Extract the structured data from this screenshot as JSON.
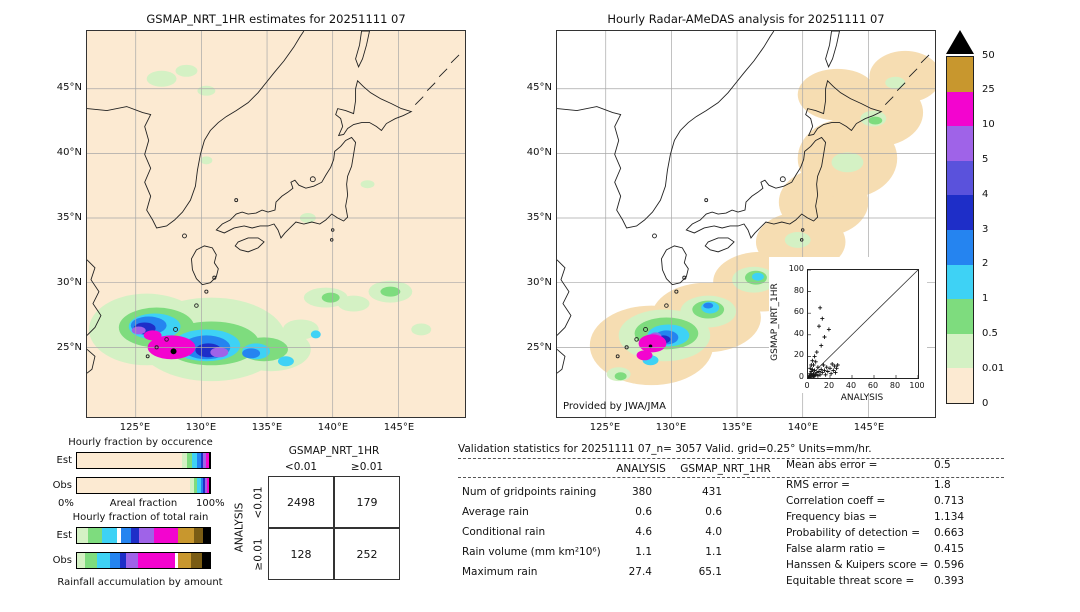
{
  "chart_data": [
    {
      "id": "gsmap_map",
      "type": "heatmap",
      "title": "GSMAP_NRT_1HR estimates for 20251111 07",
      "lat_ticks": [
        "45°N",
        "40°N",
        "35°N",
        "30°N",
        "25°N"
      ],
      "lon_ticks": [
        "125°E",
        "130°E",
        "135°E",
        "140°E",
        "145°E"
      ],
      "units": "mm/hr"
    },
    {
      "id": "radar_map",
      "type": "heatmap",
      "title": "Hourly Radar-AMeDAS analysis for 20251111 07",
      "credit": "Provided by JWA/JMA",
      "lat_ticks": [
        "45°N",
        "40°N",
        "35°N",
        "30°N",
        "25°N"
      ],
      "lon_ticks": [
        "125°E",
        "130°E",
        "135°E",
        "140°E",
        "145°E"
      ],
      "units": "mm/hr"
    },
    {
      "id": "validation_scatter",
      "type": "scatter",
      "xlabel": "ANALYSIS",
      "ylabel": "GSMAP_NRT_1HR",
      "xlim": [
        0,
        100
      ],
      "ylim": [
        0,
        100
      ],
      "tick_labels": [
        "0",
        "20",
        "40",
        "60",
        "80",
        "100"
      ],
      "marker": "+",
      "points": [
        [
          0,
          0
        ],
        [
          1,
          0
        ],
        [
          1,
          2
        ],
        [
          2,
          1
        ],
        [
          2,
          4
        ],
        [
          2,
          9
        ],
        [
          3,
          1
        ],
        [
          3,
          3
        ],
        [
          3,
          6
        ],
        [
          3,
          12
        ],
        [
          4,
          2
        ],
        [
          4,
          8
        ],
        [
          4,
          16
        ],
        [
          5,
          1
        ],
        [
          5,
          4
        ],
        [
          5,
          12
        ],
        [
          6,
          2
        ],
        [
          6,
          7
        ],
        [
          6,
          20
        ],
        [
          7,
          3
        ],
        [
          7,
          15
        ],
        [
          8,
          5
        ],
        [
          8,
          24
        ],
        [
          9,
          2
        ],
        [
          9,
          10
        ],
        [
          10,
          6
        ],
        [
          10,
          48
        ],
        [
          11,
          3
        ],
        [
          11,
          65
        ],
        [
          12,
          8
        ],
        [
          12,
          30
        ],
        [
          13,
          5
        ],
        [
          13,
          55
        ],
        [
          14,
          12
        ],
        [
          15,
          7
        ],
        [
          15,
          38
        ],
        [
          16,
          3
        ],
        [
          17,
          10
        ],
        [
          18,
          6
        ],
        [
          19,
          45
        ],
        [
          20,
          9
        ],
        [
          21,
          4
        ],
        [
          22,
          13
        ],
        [
          23,
          7
        ],
        [
          24,
          11
        ],
        [
          25,
          5
        ],
        [
          26,
          9
        ],
        [
          27,
          12
        ]
      ]
    },
    {
      "id": "colorbar",
      "type": "legend",
      "units": "mm/hr",
      "labels": [
        "50",
        "25",
        "10",
        "5",
        "4",
        "3",
        "2",
        "1",
        "0.5",
        "0.01",
        "0"
      ],
      "colors": [
        "#c8972e",
        "#f304cf",
        "#9f63e8",
        "#5a52dc",
        "#1e2ec8",
        "#2584f0",
        "#3ed2f5",
        "#7edc7e",
        "#d4f1c4",
        "#fcead2"
      ],
      "overflow_color": "#000000"
    },
    {
      "id": "occurrence_fraction_bars",
      "type": "bar",
      "title": "Hourly fraction by occurence",
      "row_labels": [
        "Est",
        "Obs"
      ],
      "x_left": "0%",
      "x_label": "Areal fraction",
      "x_right": "100%",
      "est": [
        {
          "c": "#fcead2",
          "w": 79
        },
        {
          "c": "#d4f1c4",
          "w": 4
        },
        {
          "c": "#7edc7e",
          "w": 3.5
        },
        {
          "c": "#3ed2f5",
          "w": 3.5
        },
        {
          "c": "#2584f0",
          "w": 3
        },
        {
          "c": "#1e2ec8",
          "w": 2
        },
        {
          "c": "#9f63e8",
          "w": 2
        },
        {
          "c": "#f304cf",
          "w": 2
        },
        {
          "c": "#c8972e",
          "w": 0.6
        },
        {
          "c": "#000000",
          "w": 0.4
        }
      ],
      "obs": [
        {
          "c": "#fcead2",
          "w": 85
        },
        {
          "c": "#d4f1c4",
          "w": 3
        },
        {
          "c": "#7edc7e",
          "w": 2.5
        },
        {
          "c": "#3ed2f5",
          "w": 2.5
        },
        {
          "c": "#2584f0",
          "w": 2
        },
        {
          "c": "#1e2ec8",
          "w": 1.2
        },
        {
          "c": "#9f63e8",
          "w": 1.3
        },
        {
          "c": "#f304cf",
          "w": 1.6
        },
        {
          "c": "#c8972e",
          "w": 0.5
        },
        {
          "c": "#000000",
          "w": 0.4
        }
      ]
    },
    {
      "id": "totalrain_fraction_bars",
      "type": "bar",
      "title": "Hourly fraction of total rain",
      "row_labels": [
        "Est",
        "Obs"
      ],
      "x_label": "Rainfall accumulation by amount",
      "est": [
        {
          "c": "#d4f1c4",
          "w": 8
        },
        {
          "c": "#7edc7e",
          "w": 11
        },
        {
          "c": "#3ed2f5",
          "w": 11
        },
        {
          "c": "#ffffff",
          "w": 3
        },
        {
          "c": "#2584f0",
          "w": 8
        },
        {
          "c": "#1e2ec8",
          "w": 6
        },
        {
          "c": "#9f63e8",
          "w": 11
        },
        {
          "c": "#f304cf",
          "w": 18
        },
        {
          "c": "#c8972e",
          "w": 12
        },
        {
          "c": "#7a5c14",
          "w": 7
        },
        {
          "c": "#000000",
          "w": 5
        }
      ],
      "obs": [
        {
          "c": "#d4f1c4",
          "w": 6
        },
        {
          "c": "#7edc7e",
          "w": 9
        },
        {
          "c": "#3ed2f5",
          "w": 10
        },
        {
          "c": "#2584f0",
          "w": 7
        },
        {
          "c": "#1e2ec8",
          "w": 5
        },
        {
          "c": "#9f63e8",
          "w": 9
        },
        {
          "c": "#f304cf",
          "w": 28
        },
        {
          "c": "#ffffff",
          "w": 2
        },
        {
          "c": "#c8972e",
          "w": 10
        },
        {
          "c": "#7a5c14",
          "w": 8
        },
        {
          "c": "#000000",
          "w": 6
        }
      ]
    },
    {
      "id": "contingency_table",
      "type": "table",
      "header": "GSMAP_NRT_1HR",
      "col_labels": [
        "<0.01",
        "≥0.01"
      ],
      "row_header": "ANALYSIS",
      "row_labels": [
        "<0.01",
        "≥0.01"
      ],
      "values": [
        [
          "2498",
          "179"
        ],
        [
          "128",
          "252"
        ]
      ]
    },
    {
      "id": "validation_stats",
      "type": "table",
      "title": "Validation statistics for 20251111 07_n= 3057 Valid. grid=0.25° Units=mm/hr.",
      "columns": [
        "ANALYSIS",
        "GSMAP_NRT_1HR"
      ],
      "rows": [
        {
          "label": "Num of gridpoints raining",
          "analysis": "380",
          "gsmap": "431"
        },
        {
          "label": "Average rain",
          "analysis": "0.6",
          "gsmap": "0.6"
        },
        {
          "label": "Conditional rain",
          "analysis": "4.6",
          "gsmap": "4.0"
        },
        {
          "label": "Rain volume (mm km²10⁶)",
          "analysis": "1.1",
          "gsmap": "1.1"
        },
        {
          "label": "Maximum rain",
          "analysis": "27.4",
          "gsmap": "65.1"
        }
      ]
    },
    {
      "id": "skill_scores",
      "type": "table",
      "rows": [
        {
          "label": "Mean abs error =",
          "value": "0.5"
        },
        {
          "label": "RMS error =",
          "value": "1.8"
        },
        {
          "label": "Correlation coeff =",
          "value": "0.713"
        },
        {
          "label": "Frequency bias =",
          "value": "1.134"
        },
        {
          "label": "Probability of detection =",
          "value": "0.663"
        },
        {
          "label": "False alarm ratio =",
          "value": "0.415"
        },
        {
          "label": "Hanssen & Kuipers score =",
          "value": "0.596"
        },
        {
          "label": "Equitable threat score =",
          "value": "0.393"
        }
      ]
    }
  ]
}
